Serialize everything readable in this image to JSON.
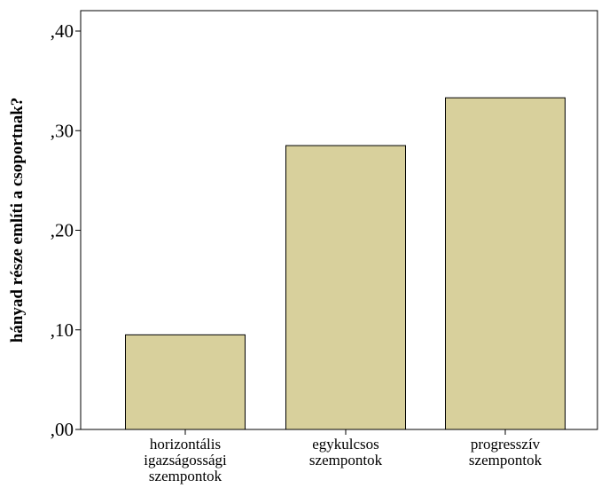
{
  "chart_data": {
    "type": "bar",
    "categories": [
      [
        "horizontális",
        "igazságossági",
        "szempontok"
      ],
      [
        "egykulcsos",
        "szempontok"
      ],
      [
        "progresszív",
        "szempontok"
      ]
    ],
    "values": [
      0.095,
      0.285,
      0.333
    ],
    "ylabel": "hányad része említi a csoportnak?",
    "xlabel": "",
    "ylim": [
      0,
      0.4
    ],
    "yticks": [
      0,
      0.1,
      0.2,
      0.3,
      0.4
    ],
    "ytick_labels": [
      ",00",
      ",10",
      ",20",
      ",30",
      ",40"
    ],
    "bar_color": "#d8d09c",
    "bar_edge_color": "#000000",
    "grid": false,
    "legend": "none"
  }
}
